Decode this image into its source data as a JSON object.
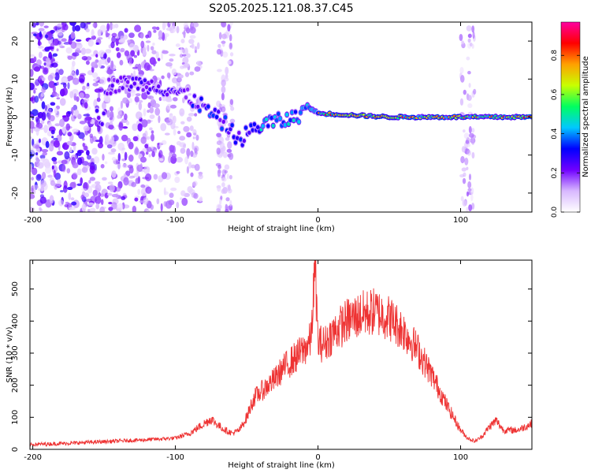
{
  "title": "S205.2025.121.08.37.C45",
  "chart_data": [
    {
      "type": "heatmap",
      "xlabel": "Height of straight line (km)",
      "ylabel": "Frequency (Hz)",
      "xlim": [
        -202,
        150
      ],
      "ylim": [
        -25,
        25
      ],
      "xticks": [
        -200,
        -100,
        0,
        100
      ],
      "yticks": [
        -20,
        -10,
        0,
        10,
        20
      ],
      "colorbar": {
        "label": "Normalized spectral amplitude",
        "ticks": [
          "0.0",
          "0.2",
          "0.4",
          "0.6",
          "0.8"
        ],
        "range": [
          0,
          0.97
        ],
        "colors": [
          "#ffffff",
          "#d8b8ff",
          "#7000ff",
          "#0000ff",
          "#00c8ff",
          "#00ff60",
          "#c8ff00",
          "#ffa000",
          "#ff0000",
          "#ff00a0"
        ]
      },
      "ridge": [
        {
          "x": -150,
          "y": 8
        },
        {
          "x": -130,
          "y": 9
        },
        {
          "x": -110,
          "y": 8
        },
        {
          "x": -95,
          "y": 6
        },
        {
          "x": -85,
          "y": 4
        },
        {
          "x": -75,
          "y": 1
        },
        {
          "x": -65,
          "y": -2
        },
        {
          "x": -55,
          "y": -6
        },
        {
          "x": -45,
          "y": -3
        },
        {
          "x": -35,
          "y": -1.5
        },
        {
          "x": -25,
          "y": -1
        },
        {
          "x": -15,
          "y": 0
        },
        {
          "x": -8,
          "y": 3
        },
        {
          "x": 0,
          "y": 1
        },
        {
          "x": 50,
          "y": 0
        },
        {
          "x": 100,
          "y": 0
        },
        {
          "x": 150,
          "y": 0
        }
      ]
    },
    {
      "type": "line",
      "xlabel": "Height of straight line (km)",
      "ylabel": "SNR (10 * v/v)",
      "xlim": [
        -202,
        150
      ],
      "ylim": [
        0,
        590
      ],
      "xticks": [
        -200,
        -100,
        0,
        100
      ],
      "yticks": [
        0,
        100,
        200,
        300,
        400,
        500
      ],
      "color": "#ee3333",
      "x": [
        -202,
        -180,
        -160,
        -140,
        -120,
        -100,
        -90,
        -80,
        -75,
        -70,
        -65,
        -60,
        -55,
        -50,
        -45,
        -40,
        -35,
        -30,
        -25,
        -20,
        -15,
        -10,
        -5,
        -2,
        0,
        5,
        10,
        20,
        30,
        40,
        50,
        60,
        70,
        80,
        90,
        100,
        105,
        110,
        115,
        120,
        125,
        130,
        140,
        150
      ],
      "y": [
        15,
        18,
        22,
        26,
        30,
        35,
        50,
        80,
        95,
        75,
        60,
        50,
        60,
        100,
        160,
        180,
        200,
        220,
        250,
        270,
        290,
        310,
        340,
        580,
        330,
        330,
        360,
        400,
        420,
        430,
        410,
        370,
        310,
        230,
        140,
        60,
        35,
        25,
        40,
        70,
        90,
        60,
        60,
        80
      ]
    }
  ]
}
